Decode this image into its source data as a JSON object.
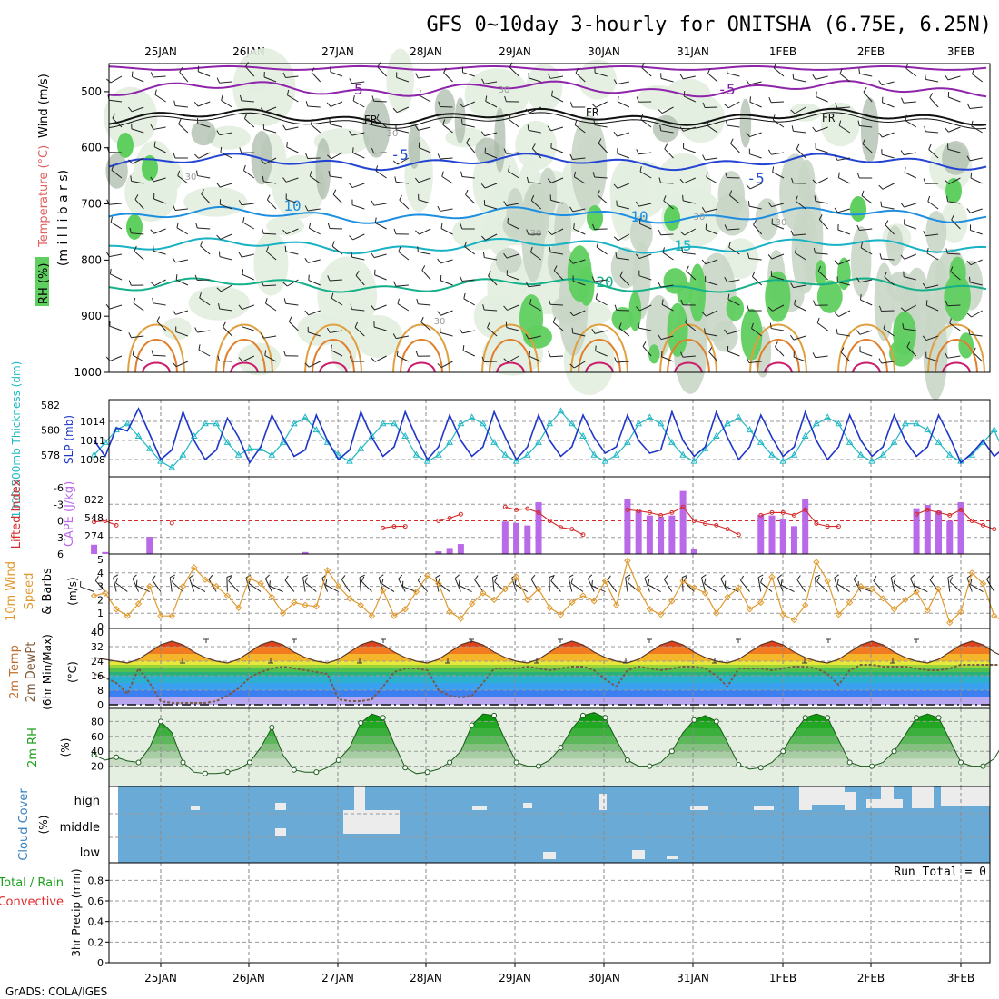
{
  "title": "GFS 0~10day 3-hourly for ONITSHA (6.75E, 6.25N)",
  "footer": "GrADS: COLA/IGES",
  "dates": [
    "25JAN",
    "26JAN",
    "27JAN",
    "28JAN",
    "29JAN",
    "30JAN",
    "31JAN",
    "1FEB",
    "2FEB",
    "3FEB"
  ],
  "colors": {
    "rh_light": "#e2eee0",
    "rh_mid": "#c9d6c6",
    "rh_dark": "#a8b8a6",
    "rh_green": "#5fcf5f",
    "slp": "#1f36c8",
    "thickness": "#20b8c4",
    "lifted": "#d42a2a",
    "cape": "#b86ae8",
    "wind10": "#e09a30",
    "cloud": "#6aaad6",
    "cloud_gap": "#ececec"
  },
  "chart_data": [
    {
      "type": "heatmap",
      "name": "upper_air",
      "ylabel": "(millibars)",
      "ylabel_left": [
        "RH (%)",
        "Temperature (°C)",
        "Wind (m/s)"
      ],
      "y_ticks": [
        500,
        600,
        700,
        800,
        900,
        1000
      ],
      "ylim": [
        450,
        1000
      ],
      "isotherm_labels": [
        "-5",
        "FR",
        "-5",
        "10",
        "15",
        "20",
        "-5",
        "FR",
        "10",
        "-5",
        "FR"
      ],
      "rh_labels": [
        "30",
        "30",
        "30",
        "30",
        "30",
        "30",
        "30"
      ],
      "isotherms": [
        {
          "label": "-5",
          "p": 495
        },
        {
          "label": "FR",
          "p": 545
        },
        {
          "label": "-5",
          "p": 625
        },
        {
          "label": "10",
          "p": 720
        },
        {
          "label": "15",
          "p": 775
        },
        {
          "label": "20",
          "p": 845
        }
      ]
    },
    {
      "type": "line",
      "name": "slp_thickness",
      "ylabel_left": "1000-500mb Thickness (dm)",
      "ylabel_right": "SLP (mb)",
      "left_ticks": [
        578,
        580,
        582
      ],
      "right_ticks": [
        1008,
        1011,
        1014
      ],
      "series": [
        {
          "name": "SLP (mb)",
          "values": [
            1011,
            1008.5,
            1013,
            1012.5,
            1016,
            1012,
            1008,
            1009.5,
            1015.5,
            1011,
            1008,
            1009.5,
            1014.5,
            1011.5,
            1007.5,
            1010,
            1015,
            1011.5,
            1008.5,
            1009.5,
            1015,
            1011,
            1008,
            1009.5,
            1015.5,
            1011.5,
            1008.5,
            1010,
            1015.5,
            1011.5,
            1008,
            1010,
            1015,
            1011,
            1008.5,
            1010,
            1015.5,
            1011.5,
            1008,
            1010,
            1015,
            1011,
            1008.5,
            1010,
            1015,
            1011.5,
            1009,
            1010,
            1015,
            1011,
            1009,
            1009.5,
            1015.5,
            1011,
            1008.5,
            1010,
            1015.5,
            1011.5,
            1008,
            1010,
            1015,
            1011.5,
            1008.5,
            1010,
            1015.5,
            1011,
            1008,
            1010,
            1015,
            1011,
            1008.5,
            1010,
            1015,
            1011,
            1008.5,
            1010,
            1015,
            1011.5,
            1007.5,
            1009,
            1011,
            1008.5,
            1010
          ]
        },
        {
          "name": "1000-500mb Thickness (dm)",
          "values": [
            578,
            579,
            580,
            580.5,
            579.5,
            578.5,
            577.5,
            577,
            578,
            579.5,
            580.5,
            580.5,
            579,
            578,
            578.5,
            578.5,
            578,
            579,
            580.5,
            581,
            580,
            579,
            578,
            577.5,
            578.5,
            579.5,
            580.5,
            580.5,
            579.5,
            578,
            577.5,
            578,
            579,
            580.5,
            581,
            580.5,
            579,
            578,
            577.5,
            578,
            579,
            580.5,
            581.5,
            580.5,
            579.5,
            578,
            577.5,
            578,
            579,
            580.5,
            581,
            580.5,
            579,
            578,
            577.5,
            578.5,
            579.5,
            580.5,
            581,
            580,
            579,
            578,
            577.5,
            578,
            579.5,
            580.5,
            581,
            580.5,
            579,
            578,
            577.5,
            578,
            579,
            580.5,
            580.5,
            580,
            579,
            578,
            577.5,
            578,
            579,
            580,
            578
          ]
        }
      ]
    },
    {
      "type": "bar",
      "name": "cape_lifted",
      "ylabel_left": "Lifted Index",
      "ylabel_right": "CAPE (J/kg)",
      "left_ticks": [
        -6,
        -3,
        0,
        3,
        6
      ],
      "cape_ticks": [
        274,
        548,
        822
      ],
      "cape": [
        140,
        30,
        0,
        0,
        0,
        260,
        0,
        0,
        0,
        0,
        0,
        0,
        0,
        0,
        0,
        0,
        0,
        0,
        0,
        30,
        0,
        0,
        0,
        0,
        0,
        0,
        0,
        0,
        0,
        0,
        0,
        40,
        90,
        150,
        0,
        0,
        0,
        490,
        470,
        430,
        780,
        0,
        0,
        0,
        0,
        0,
        0,
        0,
        830,
        660,
        580,
        560,
        580,
        950,
        70,
        0,
        0,
        0,
        0,
        0,
        590,
        580,
        520,
        420,
        830,
        0,
        0,
        0,
        0,
        0,
        0,
        0,
        0,
        0,
        690,
        740,
        650,
        500,
        780,
        0,
        0,
        0,
        800,
        720,
        590,
        1000
      ],
      "lifted_index": [
        0.2,
        0,
        0.8,
        6,
        6,
        6,
        6,
        0.4,
        6,
        6,
        6,
        6,
        6,
        6,
        6,
        6,
        6,
        6,
        6,
        6,
        6,
        6,
        6,
        6,
        6,
        6,
        1.3,
        1,
        1,
        6,
        6,
        0,
        -0.5,
        -1.2,
        6,
        6,
        6,
        -2.5,
        -2,
        -2.2,
        -1.5,
        0,
        1.2,
        1.5,
        2.5,
        6,
        6,
        6,
        -2,
        -1.8,
        -1.5,
        -1,
        -1.5,
        -2.5,
        0,
        0.5,
        0.8,
        1.5,
        2.5,
        6,
        -1,
        -1.5,
        -1.5,
        -1,
        -2,
        0.5,
        1,
        1,
        6,
        6,
        6,
        6,
        6,
        6,
        -1.2,
        -2,
        -1.5,
        -1,
        -2,
        0,
        0.8,
        1.5,
        6,
        6,
        6,
        6,
        6
      ]
    },
    {
      "type": "line",
      "name": "wind10m",
      "ylabel_left": "10m Wind Speed & Barbs",
      "ylabel_unit": "(m/s)",
      "y_ticks": [
        0,
        1,
        2,
        3,
        4,
        5
      ],
      "ylim": [
        0,
        5
      ],
      "series": [
        {
          "name": "10m Wind Speed",
          "values": [
            2.3,
            2.5,
            1.3,
            0.8,
            1.7,
            3,
            0.8,
            0.8,
            3,
            4.4,
            3.5,
            3,
            2.3,
            1.4,
            3.6,
            3.2,
            2.2,
            1,
            1.8,
            1.6,
            1.5,
            4.2,
            3,
            2.1,
            1.6,
            0.8,
            2.7,
            0.8,
            1.3,
            2.6,
            3.8,
            3.2,
            1.1,
            0.6,
            1.7,
            2.5,
            2,
            2.8,
            3.7,
            2,
            2.8,
            1.4,
            0.9,
            1.8,
            2.3,
            1.9,
            3.4,
            1.6,
            4.9,
            2.8,
            1.3,
            0.9,
            1.9,
            3.4,
            2.9,
            2.5,
            1,
            2.2,
            2.9,
            1.3,
            1.8,
            3.7,
            0.9,
            0.5,
            1.6,
            4.8,
            3.4,
            0.9,
            1.8,
            3,
            2.8,
            2.1,
            1.3,
            2,
            2.6,
            1.2,
            2.8,
            0.3,
            1.1,
            4,
            3.2,
            0.8,
            0.3,
            1
          ]
        }
      ]
    },
    {
      "type": "area",
      "name": "temp2m",
      "ylabel_left": "2m Temp 2m DewPt (6hr Min/Max)",
      "ylabel_unit": "(°C)",
      "y_ticks": [
        0,
        8,
        16,
        24,
        32,
        40
      ],
      "ylim": [
        0,
        40
      ],
      "series": [
        {
          "name": "2m Temp",
          "values": [
            26,
            25,
            24,
            23,
            25,
            29,
            33,
            35,
            33,
            29,
            26,
            24,
            23,
            25,
            29,
            33,
            35,
            33,
            29,
            26,
            24,
            23,
            25,
            29,
            33,
            35,
            33,
            29,
            26,
            24,
            23,
            25,
            29,
            33,
            35,
            33,
            29,
            26,
            24,
            23,
            25,
            29,
            33,
            35,
            33,
            29,
            26,
            24,
            23,
            25,
            29,
            33,
            35,
            33,
            29,
            26,
            24,
            23,
            25,
            29,
            33,
            35,
            33,
            29,
            26,
            24,
            23,
            25,
            29,
            33,
            35,
            33,
            29,
            26,
            24,
            23,
            25,
            29,
            33,
            35,
            33,
            29,
            26,
            25
          ]
        },
        {
          "name": "2m DewPt",
          "values": [
            17,
            15,
            12,
            6,
            20,
            12,
            2,
            1,
            1,
            1,
            1,
            2,
            5,
            9,
            15,
            18,
            20,
            21,
            20,
            19,
            18,
            17,
            3,
            2,
            2,
            3,
            10,
            18,
            20,
            20,
            19,
            8,
            5,
            4,
            5,
            12,
            20,
            20,
            20,
            21,
            20,
            19,
            20,
            21,
            21,
            19,
            14,
            10,
            19,
            21,
            20,
            19,
            20,
            21,
            21,
            20,
            16,
            10,
            20,
            20,
            20,
            19,
            20,
            21,
            21,
            20,
            17,
            11,
            19,
            22,
            22,
            21,
            21,
            21,
            20,
            19,
            19,
            20,
            22,
            22,
            22,
            22,
            22,
            22
          ]
        }
      ]
    },
    {
      "type": "area",
      "name": "rh2m",
      "ylabel_left": "2m RH",
      "ylabel_unit": "(%)",
      "y_ticks": [
        20,
        40,
        60,
        80
      ],
      "ylim": [
        0,
        100
      ],
      "series": [
        {
          "name": "2m RH",
          "values": [
            35,
            28,
            32,
            27,
            25,
            45,
            80,
            65,
            25,
            12,
            10,
            10,
            12,
            16,
            25,
            45,
            72,
            35,
            15,
            12,
            12,
            18,
            28,
            45,
            78,
            90,
            85,
            50,
            18,
            10,
            12,
            16,
            25,
            40,
            75,
            90,
            88,
            55,
            25,
            20,
            20,
            28,
            45,
            70,
            88,
            92,
            85,
            55,
            28,
            20,
            20,
            25,
            40,
            65,
            82,
            88,
            80,
            52,
            22,
            16,
            18,
            25,
            40,
            65,
            85,
            90,
            85,
            55,
            25,
            20,
            20,
            25,
            40,
            62,
            85,
            90,
            85,
            55,
            25,
            20,
            20,
            30,
            55,
            80,
            90,
            88
          ]
        }
      ]
    },
    {
      "type": "bar",
      "name": "cloud",
      "ylabel_left": "Cloud Cover",
      "ylabel_unit": "(%)",
      "levels": [
        "high",
        "middle",
        "low"
      ]
    },
    {
      "type": "line",
      "name": "precip",
      "ylabel_left": "Total / Rain",
      "ylabel_left2": "Convective",
      "ylabel_right": "3hr Precip (mm)",
      "y_ticks": [
        0,
        0.2,
        0.4,
        0.6,
        0.8
      ],
      "ylim": [
        0,
        0.9
      ],
      "run_total": "Run Total = 0"
    }
  ]
}
